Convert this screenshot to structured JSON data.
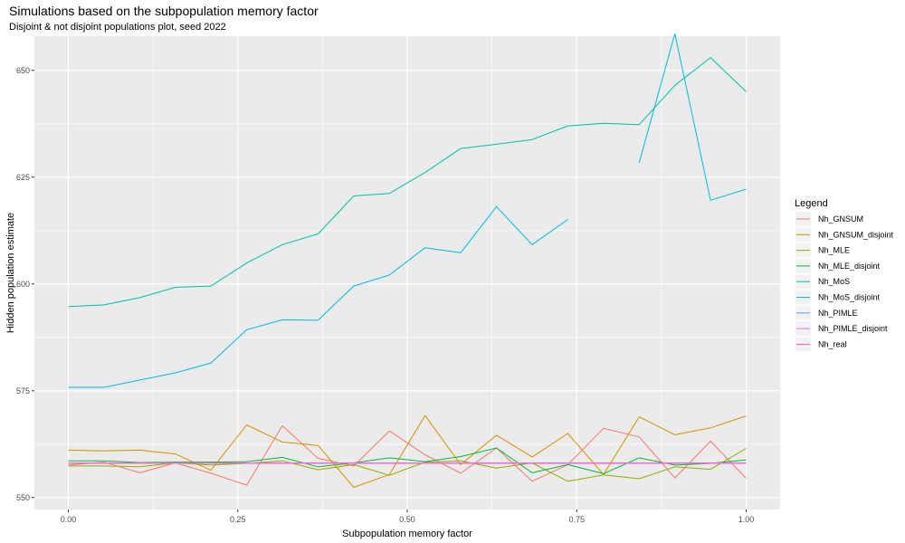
{
  "chart_data": {
    "type": "line",
    "title": "Simulations based on the subpopulation memory factor",
    "subtitle": "Disjoint & not disjoint populations plot, seed 2022",
    "xlabel": "Subpopulation memory factor",
    "ylabel": "Hidden population estimate",
    "xlim": [
      -0.05,
      1.05
    ],
    "ylim": [
      547.2,
      658
    ],
    "x_ticks": [
      0,
      0.25,
      0.5,
      0.75,
      1
    ],
    "x_tick_labels": [
      "0.00",
      "0.25",
      "0.50",
      "0.75",
      "1.00"
    ],
    "y_ticks": [
      550,
      575,
      600,
      625,
      650
    ],
    "y_tick_labels": [
      "550",
      "575",
      "600",
      "625",
      "650"
    ],
    "grid": true,
    "legend": {
      "title": "Legend",
      "position": "right"
    },
    "x": [
      0,
      0.0526,
      0.1053,
      0.1579,
      0.2105,
      0.2632,
      0.3158,
      0.3684,
      0.4211,
      0.4737,
      0.5263,
      0.5789,
      0.6316,
      0.6842,
      0.7368,
      0.7895,
      0.8421,
      0.8947,
      0.9474,
      1.0
    ],
    "series": [
      {
        "name": "Nh_GNSUM",
        "color": "#F8766D",
        "values": [
          557.6,
          558.3,
          555.8,
          558.1,
          555.7,
          552.9,
          566.8,
          559.2,
          557.4,
          565.6,
          560,
          555.7,
          561.6,
          553.8,
          557.7,
          566.2,
          564.2,
          554.6,
          563.2,
          554.5
        ]
      },
      {
        "name": "Nh_GNSUM_disjoint",
        "color": "#D39200",
        "values": [
          561.1,
          560.9,
          561.1,
          560.2,
          556.4,
          567,
          563,
          562.2,
          552.4,
          555.4,
          569.2,
          557.7,
          564.6,
          559.5,
          565,
          555.4,
          568.9,
          564.7,
          566.3,
          569.1
        ]
      },
      {
        "name": "Nh_MLE",
        "color": "#93AA00",
        "values": [
          557.4,
          557.4,
          557.2,
          558.1,
          557.6,
          558,
          558.6,
          556.5,
          557.7,
          555.2,
          558.3,
          558.6,
          556.9,
          558.1,
          553.8,
          555.3,
          554.4,
          557.2,
          556.6,
          561.5
        ]
      },
      {
        "name": "Nh_MLE_disjoint",
        "color": "#00BA38",
        "values": [
          558.6,
          558.6,
          558.2,
          558.3,
          558.3,
          558.4,
          559.4,
          557.2,
          558.1,
          559.3,
          558.4,
          559.6,
          561.6,
          555.8,
          557.7,
          555.6,
          559.3,
          557.6,
          558,
          558.8
        ]
      },
      {
        "name": "Nh_MoS",
        "color": "#00C19F",
        "values": [
          594.7,
          595.1,
          596.8,
          599.2,
          599.5,
          604.9,
          609.2,
          611.7,
          620.6,
          621.2,
          626.1,
          631.7,
          632.7,
          633.8,
          637,
          637.6,
          637.3,
          646.5,
          653,
          645
        ]
      },
      {
        "name": "Nh_MoS_disjoint",
        "color": "#00B9E3",
        "values": [
          575.8,
          575.8,
          577.5,
          579.2,
          581.5,
          589.3,
          591.6,
          591.5,
          599.5,
          602.1,
          608.5,
          607.3,
          618.1,
          609.2,
          615.1,
          null,
          628.4,
          658.6,
          619.6,
          622.2
        ]
      },
      {
        "name": "Nh_PIMLE",
        "color": "#619CFF",
        "values": [
          558.1,
          558.1,
          558.1,
          558.1,
          558.1,
          558.1,
          558.1,
          558.1,
          558.1,
          558.1,
          558.1,
          558.1,
          558.1,
          558.1,
          558.1,
          558.1,
          558.1,
          558.1,
          558.1,
          558.1
        ]
      },
      {
        "name": "Nh_PIMLE_disjoint",
        "color": "#DB72FB",
        "values": [
          558.1,
          558.1,
          558.1,
          558.1,
          558.1,
          558.1,
          558.1,
          558.1,
          558.1,
          558.1,
          558.1,
          558.1,
          558.1,
          558.1,
          558.1,
          558.1,
          558.1,
          558.1,
          558.1,
          558.1
        ]
      },
      {
        "name": "Nh_real",
        "color": "#FF61C3",
        "values": [
          558,
          558,
          558,
          558,
          558,
          558,
          558,
          558,
          558,
          558,
          558,
          558,
          558,
          558,
          558,
          558,
          558,
          558,
          558,
          558
        ]
      }
    ]
  }
}
